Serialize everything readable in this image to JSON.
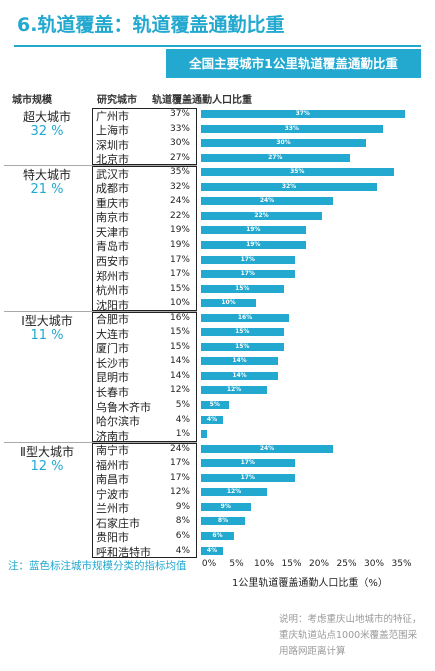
{
  "title": "6.轨道覆盖：轨道覆盖通勤比重",
  "banner": "全国主要城市1公里轨道覆盖通勤比重",
  "headers": {
    "tier": "城市规模",
    "city": "研究城市",
    "value": "轨道覆盖通勤人口比重"
  },
  "tiers": [
    {
      "name": "超大城市",
      "avg": "32 %"
    },
    {
      "name": "特大城市",
      "avg": "21 %"
    },
    {
      "name": "Ⅰ型大城市",
      "avg": "11 %"
    },
    {
      "name": "Ⅱ型大城市",
      "avg": "12 %"
    }
  ],
  "rows": [
    {
      "city": "广州市",
      "pct": "37%",
      "bar": "37%"
    },
    {
      "city": "上海市",
      "pct": "33%",
      "bar": "33%"
    },
    {
      "city": "深圳市",
      "pct": "30%",
      "bar": "30%"
    },
    {
      "city": "北京市",
      "pct": "27%",
      "bar": "27%"
    },
    {
      "city": "武汉市",
      "pct": "35%",
      "bar": "35%"
    },
    {
      "city": "成都市",
      "pct": "32%",
      "bar": "32%"
    },
    {
      "city": "重庆市",
      "pct": "24%",
      "bar": "24%"
    },
    {
      "city": "南京市",
      "pct": "22%",
      "bar": "22%"
    },
    {
      "city": "天津市",
      "pct": "19%",
      "bar": "19%"
    },
    {
      "city": "青岛市",
      "pct": "19%",
      "bar": "19%"
    },
    {
      "city": "西安市",
      "pct": "17%",
      "bar": "17%"
    },
    {
      "city": "郑州市",
      "pct": "17%",
      "bar": "17%"
    },
    {
      "city": "杭州市",
      "pct": "15%",
      "bar": "15%"
    },
    {
      "city": "沈阳市",
      "pct": "10%",
      "bar": "10%"
    },
    {
      "city": "合肥市",
      "pct": "16%",
      "bar": "16%"
    },
    {
      "city": "大连市",
      "pct": "15%",
      "bar": "15%"
    },
    {
      "city": "厦门市",
      "pct": "15%",
      "bar": "15%"
    },
    {
      "city": "长沙市",
      "pct": "14%",
      "bar": "14%"
    },
    {
      "city": "昆明市",
      "pct": "14%",
      "bar": "14%"
    },
    {
      "city": "长春市",
      "pct": "12%",
      "bar": "12%"
    },
    {
      "city": "乌鲁木齐市",
      "pct": "5%",
      "bar": "5%"
    },
    {
      "city": "哈尔滨市",
      "pct": "4%",
      "bar": "4%"
    },
    {
      "city": "济南市",
      "pct": "1%",
      "bar": "1%"
    },
    {
      "city": "南宁市",
      "pct": "24%",
      "bar": "24%"
    },
    {
      "city": "福州市",
      "pct": "17%",
      "bar": "17%"
    },
    {
      "city": "南昌市",
      "pct": "17%",
      "bar": "17%"
    },
    {
      "city": "宁波市",
      "pct": "12%",
      "bar": "12%"
    },
    {
      "city": "兰州市",
      "pct": "9%",
      "bar": "9%"
    },
    {
      "city": "石家庄市",
      "pct": "8%",
      "bar": "8%"
    },
    {
      "city": "贵阳市",
      "pct": "6%",
      "bar": "6%"
    },
    {
      "city": "呼和浩特市",
      "pct": "4%",
      "bar": "4%"
    }
  ],
  "note": "注：蓝色标注城市规模分类的指标均值",
  "footnote": "说明：考虑重庆山地城市的特征，重庆轨道站点1000米覆盖范围采用路网距离计算",
  "colors": {
    "accent": "#23a8cf"
  },
  "chart_data": {
    "type": "bar",
    "orientation": "horizontal",
    "categories": [
      "广州市",
      "上海市",
      "深圳市",
      "北京市",
      "武汉市",
      "成都市",
      "重庆市",
      "南京市",
      "天津市",
      "青岛市",
      "西安市",
      "郑州市",
      "杭州市",
      "沈阳市",
      "合肥市",
      "大连市",
      "厦门市",
      "长沙市",
      "昆明市",
      "长春市",
      "乌鲁木齐市",
      "哈尔滨市",
      "济南市",
      "南宁市",
      "福州市",
      "南昌市",
      "宁波市",
      "兰州市",
      "石家庄市",
      "贵阳市",
      "呼和浩特市"
    ],
    "values": [
      37,
      33,
      30,
      27,
      35,
      32,
      24,
      22,
      19,
      19,
      17,
      17,
      15,
      10,
      16,
      15,
      15,
      14,
      14,
      12,
      5,
      4,
      1,
      24,
      17,
      17,
      12,
      9,
      8,
      6,
      4
    ],
    "groups": [
      {
        "name": "超大城市",
        "avg": 32,
        "count": 4
      },
      {
        "name": "特大城市",
        "avg": 21,
        "count": 10
      },
      {
        "name": "Ⅰ型大城市",
        "avg": 11,
        "count": 9
      },
      {
        "name": "Ⅱ型大城市",
        "avg": 12,
        "count": 8
      }
    ],
    "xlim": [
      0,
      37
    ],
    "xticks": [
      "0%",
      "5%",
      "10%",
      "15%",
      "20%",
      "25%",
      "30%",
      "35%"
    ],
    "xlabel": "1公里轨道覆盖通勤人口比重（%）",
    "title": "全国主要城市1公里轨道覆盖通勤比重",
    "grid": false
  }
}
